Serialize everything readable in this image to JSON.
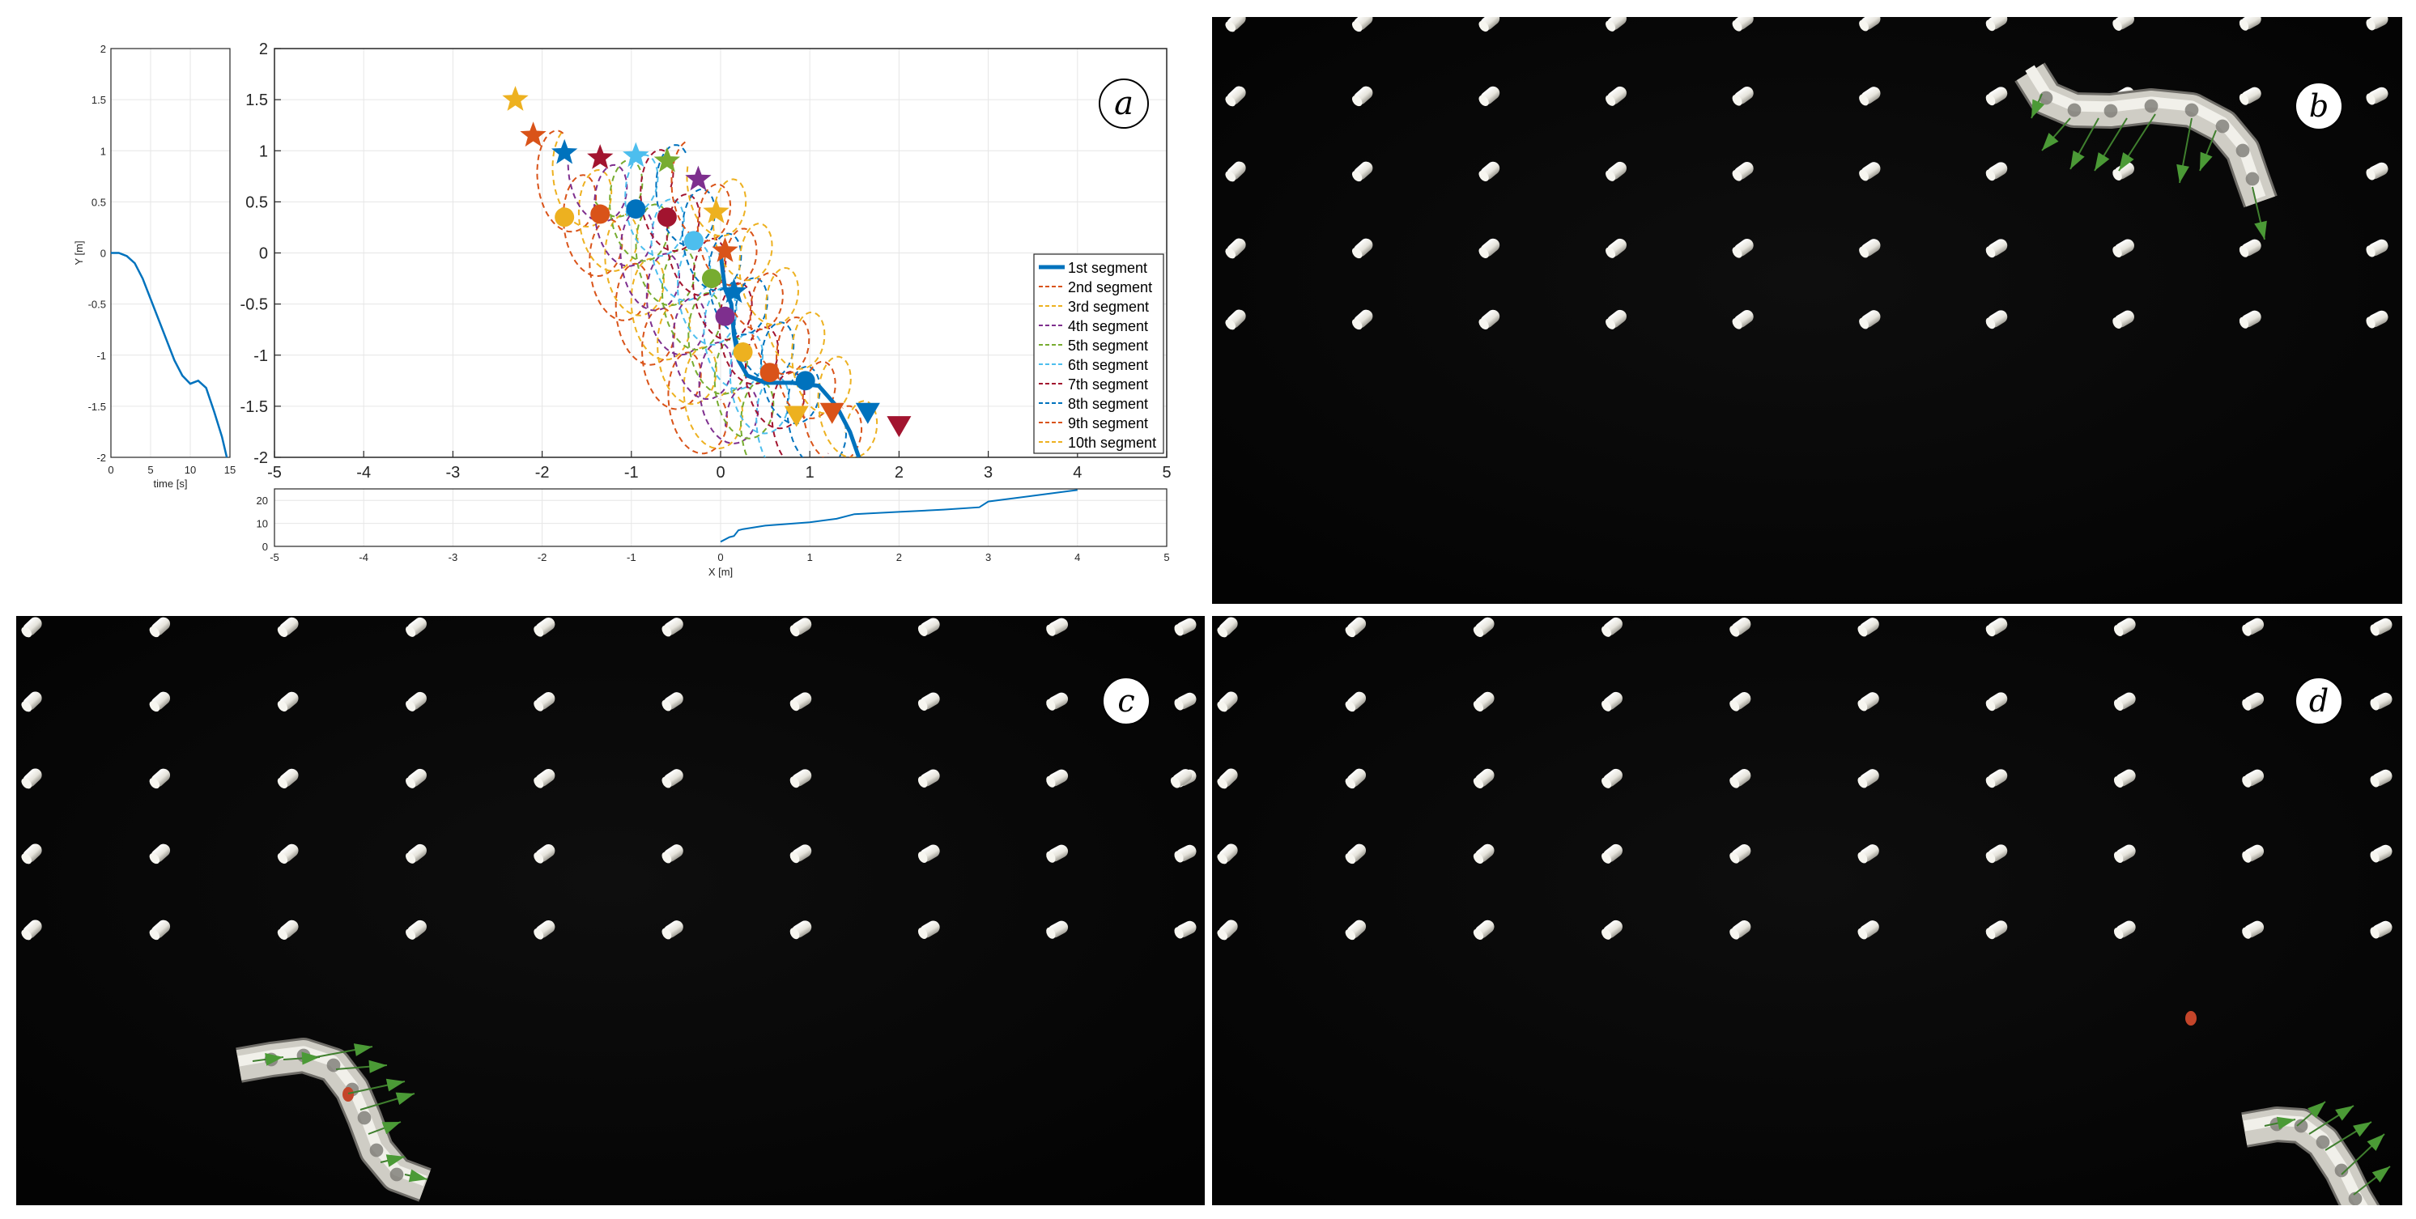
{
  "panel_a": {
    "label": "a",
    "main_plot": {
      "x_ticks": [
        "-5",
        "-4",
        "-3",
        "-2",
        "-1",
        "0",
        "1",
        "2",
        "3",
        "4",
        "5"
      ],
      "y_ticks": [
        "2",
        "1.5",
        "1",
        "0.5",
        "0",
        "-0.5",
        "-1",
        "-1.5",
        "-2"
      ],
      "legend": [
        "1st segment",
        "2nd segment",
        "3rd segment",
        "4th segment",
        "5th segment",
        "6th segment",
        "7th segment",
        "8th segment",
        "9th segment",
        "10th segment"
      ]
    },
    "left_plot": {
      "ylabel": "Y [m]",
      "xlabel": "time [s]",
      "x_ticks": [
        "0",
        "5",
        "10",
        "15"
      ],
      "y_ticks": [
        "2",
        "1.5",
        "1",
        "0.5",
        "0",
        "-0.5",
        "-1",
        "-1.5",
        "-2"
      ]
    },
    "bottom_plot": {
      "xlabel": "X [m]",
      "x_ticks": [
        "-5",
        "-4",
        "-3",
        "-2",
        "-1",
        "0",
        "1",
        "2",
        "3",
        "4",
        "5"
      ],
      "y_ticks": [
        "20",
        "10",
        "0"
      ]
    }
  },
  "panel_b": {
    "label": "b"
  },
  "panel_c": {
    "label": "c"
  },
  "panel_d": {
    "label": "d"
  },
  "chart_data": [
    {
      "type": "line",
      "xlim": [
        -5,
        5
      ],
      "ylim": [
        -2,
        2
      ],
      "grid": true,
      "legend_position": "right",
      "series": [
        {
          "name": "1st segment",
          "color": "#0072BD",
          "style": "solid",
          "x": [
            0.0,
            0.02,
            0.05,
            0.12,
            0.15,
            0.2,
            0.3,
            0.5,
            0.8,
            1.1,
            1.3,
            1.45,
            1.55
          ],
          "y": [
            0.0,
            -0.15,
            -0.35,
            -0.5,
            -0.8,
            -1.05,
            -1.2,
            -1.27,
            -1.27,
            -1.3,
            -1.5,
            -1.75,
            -2.0
          ]
        },
        {
          "name": "2nd segment",
          "color": "#D95319",
          "style": "dashed"
        },
        {
          "name": "3rd segment",
          "color": "#EDB120",
          "style": "dashed"
        },
        {
          "name": "4th segment",
          "color": "#7E2F8E",
          "style": "dashed"
        },
        {
          "name": "5th segment",
          "color": "#77AC30",
          "style": "dashed"
        },
        {
          "name": "6th segment",
          "color": "#4DBEEE",
          "style": "dashed"
        },
        {
          "name": "7th segment",
          "color": "#A2142F",
          "style": "dashed"
        },
        {
          "name": "8th segment",
          "color": "#0072BD",
          "style": "dashed"
        },
        {
          "name": "9th segment",
          "color": "#D95319",
          "style": "dashed"
        },
        {
          "name": "10th segment",
          "color": "#EDB120",
          "style": "dashed"
        }
      ],
      "star_markers": [
        {
          "x": -2.3,
          "y": 1.5,
          "color": "#EDB120"
        },
        {
          "x": -2.1,
          "y": 1.15,
          "color": "#D95319"
        },
        {
          "x": -1.75,
          "y": 0.98,
          "color": "#0072BD"
        },
        {
          "x": -1.35,
          "y": 0.93,
          "color": "#A2142F"
        },
        {
          "x": -0.95,
          "y": 0.95,
          "color": "#4DBEEE"
        },
        {
          "x": -0.6,
          "y": 0.9,
          "color": "#77AC30"
        },
        {
          "x": -0.25,
          "y": 0.72,
          "color": "#7E2F8E"
        },
        {
          "x": -0.05,
          "y": 0.4,
          "color": "#EDB120"
        },
        {
          "x": 0.05,
          "y": 0.02,
          "color": "#D95319"
        },
        {
          "x": 0.15,
          "y": -0.38,
          "color": "#0072BD"
        }
      ],
      "circle_markers": [
        {
          "x": -1.75,
          "y": 0.35,
          "color": "#EDB120"
        },
        {
          "x": -1.35,
          "y": 0.38,
          "color": "#D95319"
        },
        {
          "x": -0.95,
          "y": 0.43,
          "color": "#0072BD"
        },
        {
          "x": -0.6,
          "y": 0.35,
          "color": "#A2142F"
        },
        {
          "x": -0.3,
          "y": 0.12,
          "color": "#4DBEEE"
        },
        {
          "x": -0.1,
          "y": -0.25,
          "color": "#77AC30"
        },
        {
          "x": 0.05,
          "y": -0.62,
          "color": "#7E2F8E"
        },
        {
          "x": 0.25,
          "y": -0.97,
          "color": "#EDB120"
        },
        {
          "x": 0.55,
          "y": -1.17,
          "color": "#D95319"
        },
        {
          "x": 0.95,
          "y": -1.25,
          "color": "#0072BD"
        }
      ],
      "triangle_markers": [
        {
          "x": 0.85,
          "y": -1.6,
          "color": "#EDB120"
        },
        {
          "x": 1.25,
          "y": -1.57,
          "color": "#D95319"
        },
        {
          "x": 1.65,
          "y": -1.57,
          "color": "#0072BD"
        },
        {
          "x": 2.0,
          "y": -1.7,
          "color": "#A2142F"
        }
      ]
    },
    {
      "type": "line",
      "xlabel": "time [s]",
      "ylabel": "Y [m]",
      "xlim": [
        0,
        15
      ],
      "ylim": [
        -2,
        2
      ],
      "grid": true,
      "series": [
        {
          "color": "#0072BD",
          "x": [
            0,
            1,
            2,
            3,
            4,
            5,
            6,
            7,
            8,
            9,
            10,
            11,
            12,
            13,
            14,
            14.6
          ],
          "y": [
            0.0,
            0.0,
            -0.03,
            -0.1,
            -0.25,
            -0.45,
            -0.65,
            -0.85,
            -1.05,
            -1.2,
            -1.28,
            -1.25,
            -1.32,
            -1.55,
            -1.8,
            -2.0
          ]
        }
      ]
    },
    {
      "type": "line",
      "xlabel": "X [m]",
      "xlim": [
        -5,
        5
      ],
      "ylim": [
        0,
        25
      ],
      "grid": true,
      "series": [
        {
          "color": "#0072BD",
          "x": [
            0.0,
            0.1,
            0.15,
            0.2,
            0.25,
            0.5,
            1.0,
            1.3,
            1.5,
            2.0,
            2.5,
            2.9,
            3.0,
            3.5,
            3.9,
            4.0
          ],
          "y": [
            2,
            4,
            4.5,
            7,
            7.5,
            9,
            10.5,
            12,
            14,
            15,
            16,
            17,
            19.5,
            22,
            24,
            24.5
          ]
        }
      ]
    }
  ]
}
